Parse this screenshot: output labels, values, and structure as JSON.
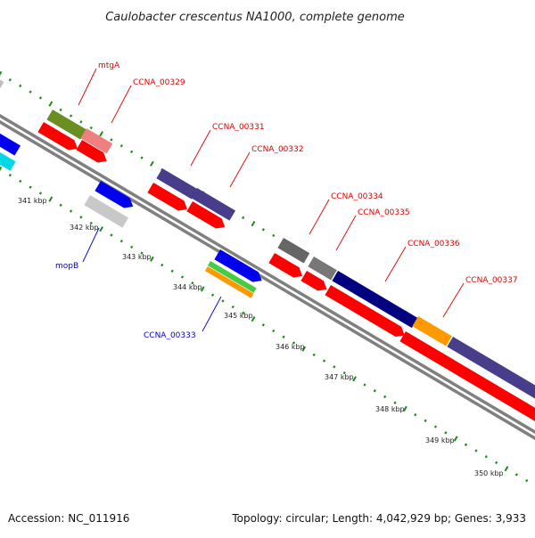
{
  "title": "Caulobacter crescentus NA1000, complete genome",
  "footer": {
    "accession": "Accession: NC_011916",
    "summary": "Topology: circular; Length: 4,042,929 bp; Genes: 3,933"
  },
  "colors": {
    "backbone": "#808080",
    "tick": "#1a8c1a",
    "label_top": "#dd0000",
    "label_bottom": "#0000cc"
  },
  "kbp_labels": [
    "341 kbp",
    "342 kbp",
    "343 kbp",
    "344 kbp",
    "345 kbp",
    "346 kbp",
    "347 kbp",
    "348 kbp",
    "349 kbp",
    "350 kbp"
  ],
  "gene_labels": {
    "mtgA": "mtgA",
    "ccna_00329": "CCNA_00329",
    "ccna_00331": "CCNA_00331",
    "ccna_00332": "CCNA_00332",
    "ccna_00334": "CCNA_00334",
    "ccna_00335": "CCNA_00335",
    "ccna_00336": "CCNA_00336",
    "ccna_00337": "CCNA_00337",
    "mopB": "mopB",
    "ccna_00333": "CCNA_00333"
  }
}
